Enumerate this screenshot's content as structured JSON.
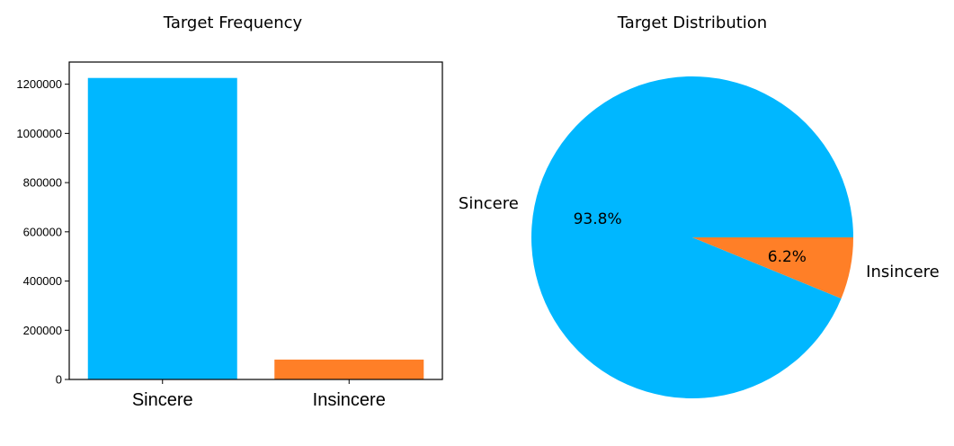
{
  "chart_data": [
    {
      "type": "bar",
      "title": "Target Frequency",
      "categories": [
        "Sincere",
        "Insincere"
      ],
      "values": [
        1225312,
        80810
      ],
      "colors": [
        "#00b7ff",
        "#ff7f27"
      ],
      "ylim": [
        0,
        1290000
      ],
      "yticks": [
        0,
        200000,
        400000,
        600000,
        800000,
        1000000,
        1200000
      ],
      "ytick_labels": [
        "0",
        "200000",
        "400000",
        "600000",
        "800000",
        "1000000",
        "1200000"
      ],
      "xlabel": "",
      "ylabel": "",
      "grid": false
    },
    {
      "type": "pie",
      "title": "Target Distribution",
      "labels": [
        "Sincere",
        "Insincere"
      ],
      "values": [
        93.8,
        6.2
      ],
      "pct_labels": [
        "93.8%",
        "6.2%"
      ],
      "colors": [
        "#00b7ff",
        "#ff7f27"
      ]
    }
  ]
}
